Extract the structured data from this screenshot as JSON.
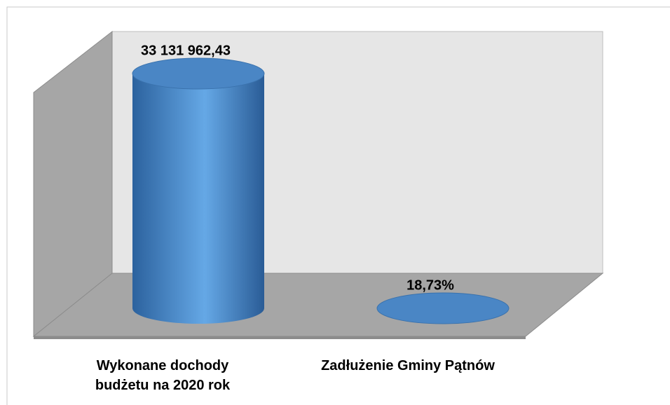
{
  "chart_data": {
    "type": "cylinder",
    "categories": [
      "Wykonane dochody budżetu na 2020 rok",
      "Zadłużenie Gminy Pątnów"
    ],
    "values": [
      33131962.43,
      18.73
    ],
    "value_labels": [
      "33 131 962,43",
      "18,73%"
    ],
    "color": "#4a86c5"
  }
}
